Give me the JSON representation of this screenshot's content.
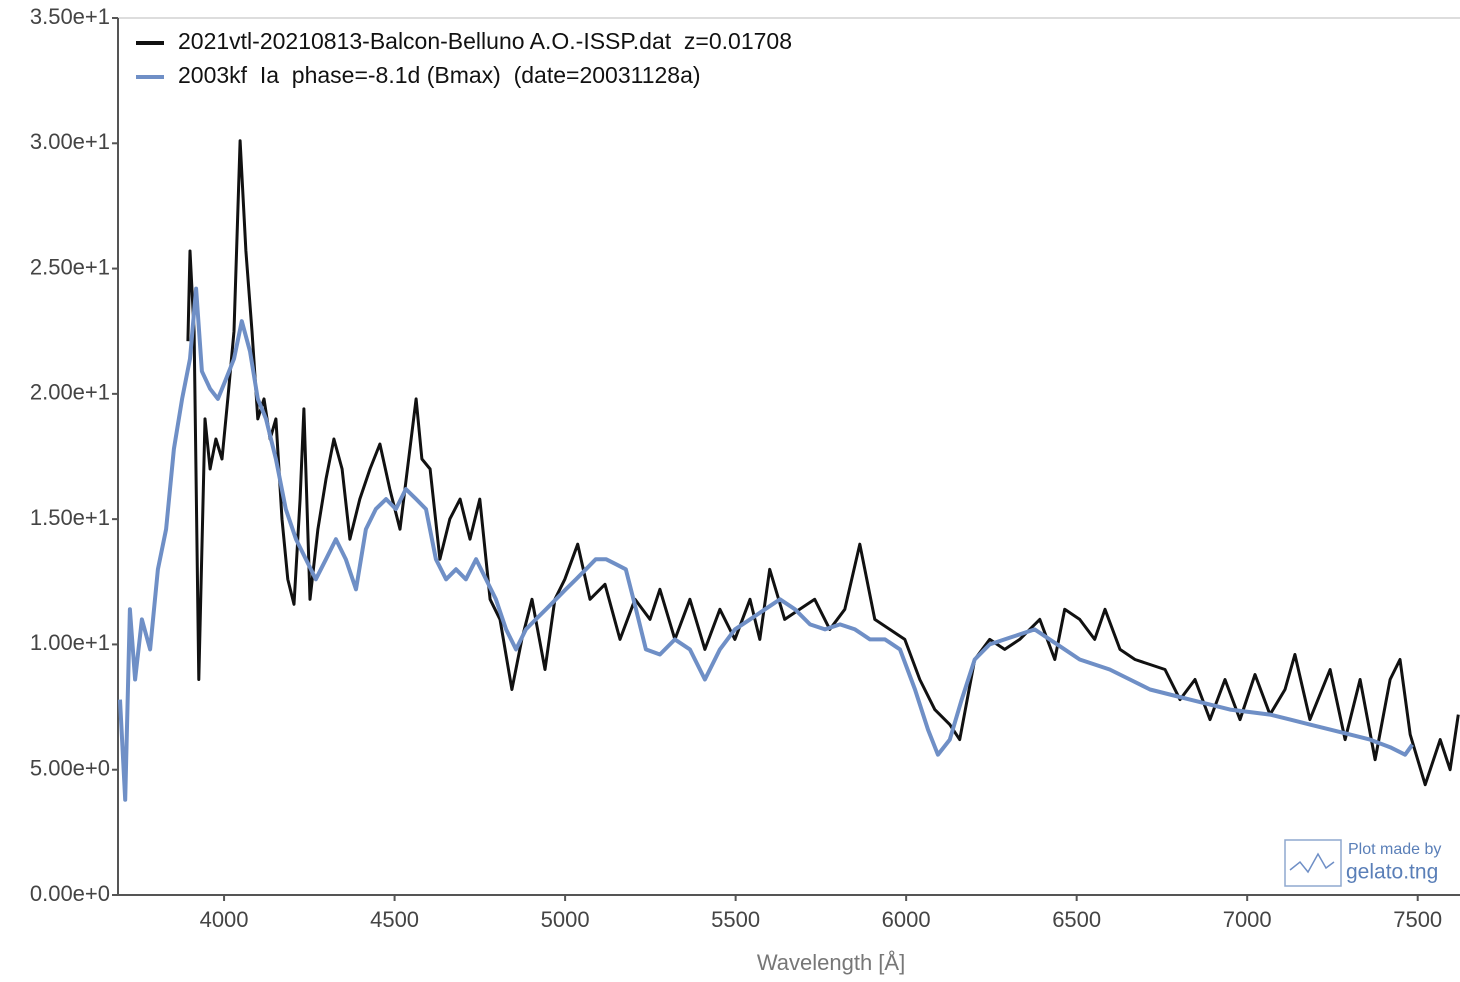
{
  "chart_data": {
    "type": "line",
    "x_label": "Wavelength [Å]",
    "credit": [
      "Plot made by",
      "gelato.tng"
    ],
    "xlim": [
      3689,
      7624
    ],
    "ylim": [
      0,
      35
    ],
    "xticks": [
      4000,
      4500,
      5000,
      5500,
      6000,
      6500,
      7000,
      7500
    ],
    "yticks": [
      {
        "value": 0,
        "label": "0.00e+0"
      },
      {
        "value": 5,
        "label": "5.00e+0"
      },
      {
        "value": 10,
        "label": "1.00e+1"
      },
      {
        "value": 15,
        "label": "1.50e+1"
      },
      {
        "value": 20,
        "label": "2.00e+1"
      },
      {
        "value": 25,
        "label": "2.50e+1"
      },
      {
        "value": 30,
        "label": "3.00e+1"
      },
      {
        "value": 35,
        "label": "3.50e+1"
      }
    ],
    "legend": "upper left",
    "series": [
      {
        "name": "2021vtl-20210813-Balcon-Belluno A.O.-ISSP.dat  z=0.01708",
        "color": "#111111",
        "x": [
          3894,
          3900,
          3912,
          3926,
          3944,
          3959,
          3976,
          3994,
          4011,
          4029,
          4047,
          4064,
          4082,
          4099,
          4117,
          4135,
          4152,
          4170,
          4187,
          4205,
          4223,
          4234,
          4252,
          4275,
          4299,
          4322,
          4346,
          4369,
          4398,
          4428,
          4457,
          4486,
          4516,
          4545,
          4563,
          4580,
          4604,
          4633,
          4662,
          4692,
          4721,
          4750,
          4780,
          4809,
          4844,
          4873,
          4903,
          4941,
          4970,
          4999,
          5037,
          5073,
          5117,
          5161,
          5205,
          5249,
          5278,
          5322,
          5366,
          5410,
          5454,
          5498,
          5542,
          5571,
          5600,
          5644,
          5688,
          5732,
          5776,
          5820,
          5864,
          5908,
          5952,
          5996,
          6040,
          6084,
          6128,
          6157,
          6201,
          6245,
          6289,
          6333,
          6392,
          6436,
          6465,
          6509,
          6553,
          6583,
          6627,
          6671,
          6715,
          6759,
          6803,
          6847,
          6891,
          6935,
          6979,
          7023,
          7067,
          7111,
          7140,
          7184,
          7243,
          7287,
          7331,
          7375,
          7419,
          7448,
          7478,
          7522,
          7566,
          7595,
          7619
        ],
        "values": [
          22.1,
          25.7,
          22.5,
          8.6,
          19.0,
          17.0,
          18.2,
          17.4,
          19.8,
          22.5,
          30.1,
          25.7,
          22.5,
          19.0,
          19.8,
          18.2,
          19.0,
          15.0,
          12.6,
          11.6,
          15.8,
          19.4,
          11.8,
          14.6,
          16.6,
          18.2,
          17.0,
          14.2,
          15.8,
          17.0,
          18.0,
          16.2,
          14.6,
          17.8,
          19.8,
          17.4,
          17.0,
          13.4,
          15.0,
          15.8,
          14.2,
          15.8,
          11.8,
          11.0,
          8.2,
          10.2,
          11.8,
          9.0,
          11.8,
          12.6,
          14.0,
          11.8,
          12.4,
          10.2,
          11.8,
          11.0,
          12.2,
          10.2,
          11.8,
          9.8,
          11.4,
          10.2,
          11.8,
          10.2,
          13.0,
          11.0,
          11.4,
          11.8,
          10.6,
          11.4,
          14.0,
          11.0,
          10.6,
          10.2,
          8.6,
          7.4,
          6.8,
          6.2,
          9.4,
          10.2,
          9.8,
          10.2,
          11.0,
          9.4,
          11.4,
          11.0,
          10.2,
          11.4,
          9.8,
          9.4,
          9.2,
          9.0,
          7.8,
          8.6,
          7.0,
          8.6,
          7.0,
          8.8,
          7.2,
          8.2,
          9.6,
          7.0,
          9.0,
          6.2,
          8.6,
          5.4,
          8.6,
          9.4,
          6.4,
          4.4,
          6.2,
          5.0,
          7.2
        ]
      },
      {
        "name": "2003kf  Ia  phase=-8.1d (Bmax)  (date=20031128a)",
        "color": "#6f8fc6",
        "x": [
          3695,
          3710,
          3724,
          3739,
          3759,
          3783,
          3806,
          3830,
          3853,
          3877,
          3900,
          3918,
          3935,
          3959,
          3982,
          4006,
          4029,
          4052,
          4076,
          4099,
          4123,
          4152,
          4181,
          4211,
          4240,
          4269,
          4299,
          4328,
          4357,
          4387,
          4416,
          4445,
          4475,
          4504,
          4533,
          4563,
          4592,
          4621,
          4651,
          4680,
          4709,
          4739,
          4768,
          4797,
          4827,
          4856,
          4885,
          4914,
          4944,
          4973,
          5002,
          5032,
          5061,
          5090,
          5120,
          5149,
          5178,
          5208,
          5237,
          5278,
          5322,
          5366,
          5410,
          5454,
          5498,
          5542,
          5586,
          5630,
          5674,
          5718,
          5762,
          5806,
          5850,
          5894,
          5938,
          5982,
          6026,
          6064,
          6093,
          6128,
          6163,
          6201,
          6245,
          6289,
          6333,
          6377,
          6421,
          6465,
          6509,
          6553,
          6597,
          6656,
          6715,
          6773,
          6832,
          6891,
          6950,
          7009,
          7067,
          7126,
          7184,
          7243,
          7302,
          7360,
          7419,
          7463,
          7484
        ],
        "values": [
          7.8,
          3.8,
          11.4,
          8.6,
          11.0,
          9.8,
          13.0,
          14.6,
          17.8,
          19.8,
          21.4,
          24.2,
          20.9,
          20.2,
          19.8,
          20.6,
          21.4,
          22.9,
          21.7,
          19.8,
          19.0,
          17.4,
          15.4,
          14.2,
          13.4,
          12.6,
          13.4,
          14.2,
          13.4,
          12.2,
          14.6,
          15.4,
          15.8,
          15.4,
          16.2,
          15.8,
          15.4,
          13.4,
          12.6,
          13.0,
          12.6,
          13.4,
          12.6,
          11.8,
          10.6,
          9.8,
          10.6,
          11.0,
          11.4,
          11.8,
          12.2,
          12.6,
          13.0,
          13.4,
          13.4,
          13.2,
          13.0,
          11.4,
          9.8,
          9.6,
          10.2,
          9.8,
          8.6,
          9.8,
          10.6,
          11.0,
          11.4,
          11.8,
          11.4,
          10.8,
          10.6,
          10.8,
          10.6,
          10.2,
          10.2,
          9.8,
          8.2,
          6.6,
          5.6,
          6.2,
          7.8,
          9.4,
          10.0,
          10.2,
          10.4,
          10.6,
          10.2,
          9.8,
          9.4,
          9.2,
          9.0,
          8.6,
          8.2,
          8.0,
          7.8,
          7.6,
          7.4,
          7.3,
          7.2,
          7.0,
          6.8,
          6.6,
          6.4,
          6.2,
          5.9,
          5.6,
          6.0
        ]
      }
    ]
  }
}
